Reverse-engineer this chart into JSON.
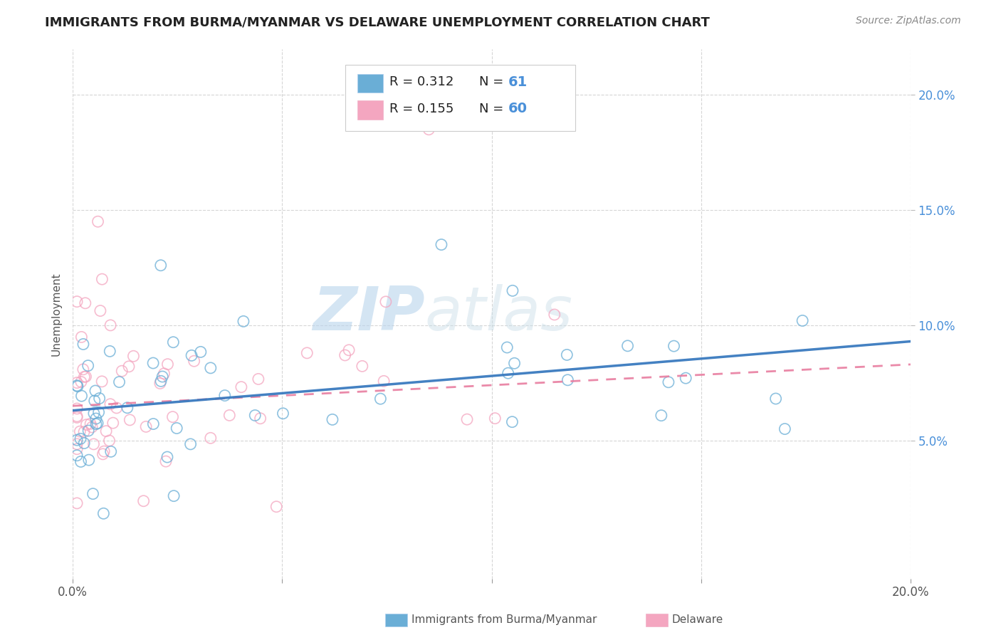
{
  "title": "IMMIGRANTS FROM BURMA/MYANMAR VS DELAWARE UNEMPLOYMENT CORRELATION CHART",
  "source": "Source: ZipAtlas.com",
  "ylabel_label": "Unemployment",
  "xlim": [
    0.0,
    0.2
  ],
  "ylim": [
    -0.01,
    0.22
  ],
  "blue_color": "#6aaed6",
  "pink_color": "#f4a6c0",
  "blue_line_color": "#3a7abf",
  "pink_line_color": "#e87da0",
  "watermark_zip": "ZIP",
  "watermark_atlas": "atlas",
  "title_color": "#222222",
  "blue_trend_x": [
    0.0,
    0.2
  ],
  "blue_trend_y": [
    0.063,
    0.093
  ],
  "pink_trend_x": [
    0.0,
    0.2
  ],
  "pink_trend_y": [
    0.065,
    0.083
  ]
}
